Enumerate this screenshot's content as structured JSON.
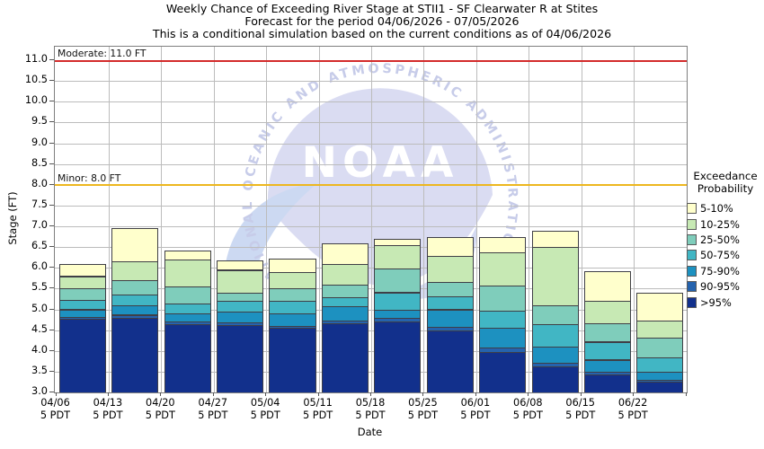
{
  "title": {
    "line1": "Weekly Chance of Exceeding River Stage at STII1 - SF Clearwater R at Stites",
    "line2": "Forecast for the period 04/06/2026 - 07/05/2026",
    "line3": "This is a conditional simulation based on the current conditions as of 04/06/2026"
  },
  "axes": {
    "y_label": "Stage (FT)",
    "x_label": "Date",
    "y_tick_values": [
      3.0,
      3.5,
      4.0,
      4.5,
      5.0,
      5.5,
      6.0,
      6.5,
      7.0,
      7.5,
      8.0,
      8.5,
      9.0,
      9.5,
      10.0,
      10.5,
      11.0
    ]
  },
  "watermark": {
    "ring_text": "NATIONAL OCEANIC AND ATMOSPHERIC ADMINISTRATION",
    "name_text": "NOAA"
  },
  "legend": {
    "title_line1": "Exceedance",
    "title_line2": "Probability"
  },
  "chart_data": {
    "type": "bar",
    "stacked": true,
    "title": "Weekly Chance of Exceeding River Stage at STII1 - SF Clearwater R at Stites",
    "xlabel": "Date",
    "ylabel": "Stage (FT)",
    "y_axis_min": 3.0,
    "y_axis_max": 11.32,
    "y_tick_step": 0.5,
    "grid": true,
    "legend_position": "right",
    "x_time_label": "5 PDT",
    "categories": [
      "04/06",
      "04/13",
      "04/20",
      "04/27",
      "05/04",
      "05/11",
      "05/18",
      "05/25",
      "06/01",
      "06/08",
      "06/15",
      "06/22"
    ],
    "series": [
      {
        "name": "5-10%",
        "color": "#FFFFCC"
      },
      {
        "name": "10-25%",
        "color": "#C7E9B4"
      },
      {
        "name": "25-50%",
        "color": "#7FCDBB"
      },
      {
        "name": "50-75%",
        "color": "#41B6C4"
      },
      {
        "name": "75-90%",
        "color": "#1D91C0"
      },
      {
        "name": "90-95%",
        "color": "#2563AE"
      },
      {
        "name": ">95%",
        "color": "#12308C"
      }
    ],
    "base_stage_ft": 3.0,
    "bars": [
      {
        "date": "04/06",
        "time_label": "5 PDT",
        "cumulative_tops_ft": {
          ">95%": 4.77,
          "90-95%": 4.82,
          "75-90%": 5.0,
          "50-75%": 5.23,
          "25-50%": 5.5,
          "10-25%": 5.8,
          "5-10%": 6.1
        }
      },
      {
        "date": "04/13",
        "time_label": "5 PDT",
        "cumulative_tops_ft": {
          ">95%": 4.8,
          "90-95%": 4.87,
          "75-90%": 5.1,
          "50-75%": 5.35,
          "25-50%": 5.7,
          "10-25%": 6.15,
          "5-10%": 6.95
        }
      },
      {
        "date": "04/20",
        "time_label": "5 PDT",
        "cumulative_tops_ft": {
          ">95%": 4.65,
          "90-95%": 4.7,
          "75-90%": 4.9,
          "50-75%": 5.15,
          "25-50%": 5.55,
          "10-25%": 6.2,
          "5-10%": 6.42
        }
      },
      {
        "date": "04/27",
        "time_label": "5 PDT",
        "cumulative_tops_ft": {
          ">95%": 4.62,
          "90-95%": 4.68,
          "75-90%": 4.95,
          "50-75%": 5.2,
          "25-50%": 5.4,
          "10-25%": 5.95,
          "5-10%": 6.18
        }
      },
      {
        "date": "05/04",
        "time_label": "5 PDT",
        "cumulative_tops_ft": {
          ">95%": 4.55,
          "90-95%": 4.6,
          "75-90%": 4.9,
          "50-75%": 5.2,
          "25-50%": 5.5,
          "10-25%": 5.9,
          "5-10%": 6.22
        }
      },
      {
        "date": "05/11",
        "time_label": "5 PDT",
        "cumulative_tops_ft": {
          ">95%": 4.66,
          "90-95%": 4.73,
          "75-90%": 5.08,
          "50-75%": 5.3,
          "25-50%": 5.6,
          "10-25%": 6.1,
          "5-10%": 6.58
        }
      },
      {
        "date": "05/18",
        "time_label": "5 PDT",
        "cumulative_tops_ft": {
          ">95%": 4.71,
          "90-95%": 4.8,
          "75-90%": 4.98,
          "50-75%": 5.41,
          "25-50%": 5.99,
          "10-25%": 6.55,
          "5-10%": 6.69
        }
      },
      {
        "date": "05/25",
        "time_label": "5 PDT",
        "cumulative_tops_ft": {
          ">95%": 4.5,
          "90-95%": 4.57,
          "75-90%": 5.0,
          "50-75%": 5.31,
          "25-50%": 5.65,
          "10-25%": 6.28,
          "5-10%": 6.74
        }
      },
      {
        "date": "06/01",
        "time_label": "5 PDT",
        "cumulative_tops_ft": {
          ">95%": 3.97,
          "90-95%": 4.08,
          "75-90%": 4.55,
          "50-75%": 4.96,
          "25-50%": 5.58,
          "10-25%": 6.37,
          "5-10%": 6.75
        }
      },
      {
        "date": "06/08",
        "time_label": "5 PDT",
        "cumulative_tops_ft": {
          ">95%": 3.63,
          "90-95%": 3.72,
          "75-90%": 4.11,
          "50-75%": 4.65,
          "25-50%": 5.09,
          "10-25%": 6.51,
          "5-10%": 6.89
        }
      },
      {
        "date": "06/15",
        "time_label": "5 PDT",
        "cumulative_tops_ft": {
          ">95%": 3.44,
          "90-95%": 3.5,
          "75-90%": 3.79,
          "50-75%": 4.22,
          "25-50%": 4.66,
          "10-25%": 5.2,
          "5-10%": 5.93
        }
      },
      {
        "date": "06/22",
        "time_label": "5 PDT",
        "cumulative_tops_ft": {
          ">95%": 3.25,
          "90-95%": 3.3,
          "75-90%": 3.5,
          "50-75%": 3.84,
          "25-50%": 4.31,
          "10-25%": 4.73,
          "5-10%": 5.41
        }
      }
    ],
    "thresholds": [
      {
        "name": "Moderate",
        "value_ft": 11.0,
        "label": "Moderate: 11.0 FT",
        "color": "#D42B2B"
      },
      {
        "name": "Minor",
        "value_ft": 8.0,
        "label": "Minor: 8.0 FT",
        "color": "#EDB71F"
      }
    ]
  }
}
